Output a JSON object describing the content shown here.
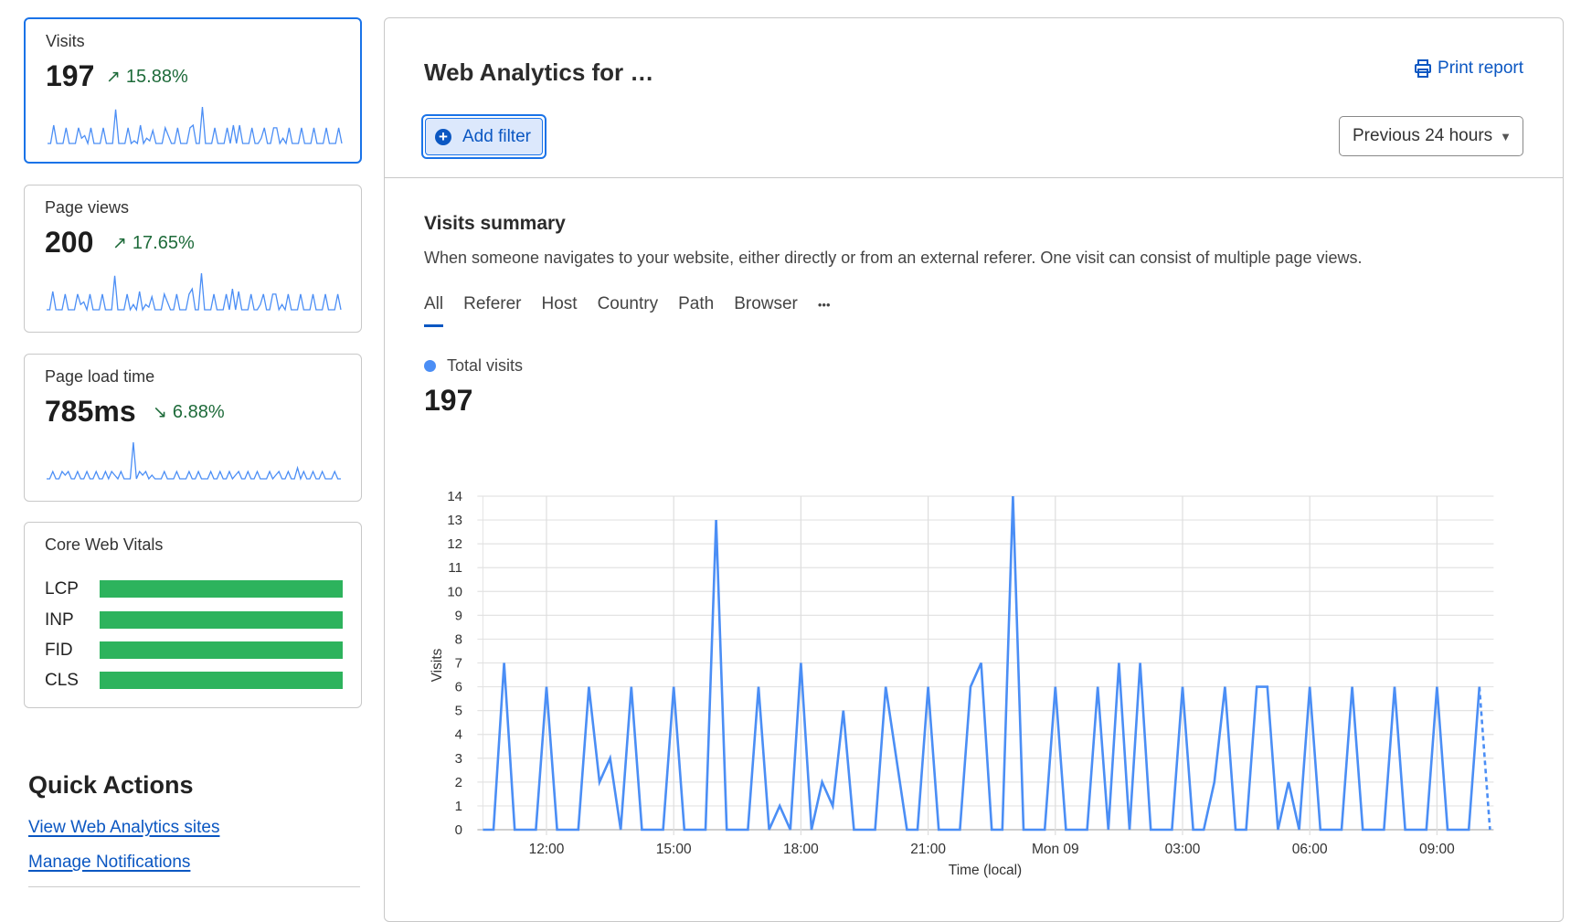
{
  "cards": {
    "visits": {
      "label": "Visits",
      "value": "197",
      "change": "15.88%",
      "trend": "up"
    },
    "page_views": {
      "label": "Page views",
      "value": "200",
      "change": "17.65%",
      "trend": "up",
      "spark": [
        0,
        0,
        7,
        0,
        0,
        0,
        6,
        0,
        0,
        0,
        6,
        2,
        3,
        0,
        6,
        0,
        0,
        0,
        6,
        0,
        0,
        0,
        13,
        0,
        0,
        0,
        6,
        0,
        2,
        0,
        7,
        0,
        2,
        1,
        5,
        0,
        0,
        0,
        6,
        3,
        0,
        0,
        6,
        0,
        0,
        0,
        6,
        8,
        0,
        0,
        14,
        0,
        0,
        0,
        6,
        0,
        0,
        0,
        6,
        0,
        8,
        0,
        7,
        0,
        0,
        0,
        6,
        0,
        0,
        2,
        6,
        0,
        0,
        6,
        6,
        0,
        2,
        0,
        6,
        0,
        0,
        0,
        6,
        0,
        0,
        0,
        6,
        0,
        0,
        0,
        6,
        0,
        0,
        0,
        6,
        0
      ]
    },
    "page_load": {
      "label": "Page load time",
      "value": "785ms",
      "change": "6.88%",
      "trend": "down",
      "spark": [
        0,
        0,
        2,
        0,
        0,
        2,
        1,
        2,
        0,
        0,
        2,
        0,
        0,
        2,
        0,
        0,
        2,
        0,
        0,
        2,
        0,
        2,
        1,
        0,
        2,
        0,
        0,
        0,
        10,
        0,
        2,
        1,
        2,
        0,
        1,
        0,
        0,
        0,
        2,
        0,
        0,
        0,
        2,
        0,
        0,
        0,
        2,
        0,
        0,
        2,
        0,
        0,
        0,
        2,
        0,
        0,
        2,
        0,
        0,
        2,
        0,
        1,
        2,
        0,
        0,
        2,
        0,
        0,
        2,
        0,
        0,
        0,
        2,
        0,
        1,
        2,
        0,
        0,
        2,
        0,
        0,
        3,
        0,
        2,
        0,
        0,
        2,
        0,
        0,
        2,
        0,
        0,
        0,
        2,
        0,
        0
      ]
    },
    "core_web_vitals": {
      "label": "Core Web Vitals",
      "metrics": [
        {
          "name": "LCP",
          "good": 1.0
        },
        {
          "name": "INP",
          "good": 1.0
        },
        {
          "name": "FID",
          "good": 1.0
        },
        {
          "name": "CLS",
          "good": 1.0
        }
      ],
      "good_color": "#2db35d"
    }
  },
  "quick_actions": {
    "title": "Quick Actions",
    "links": [
      "View Web Analytics sites",
      "Manage Notifications"
    ]
  },
  "header": {
    "title": "Web Analytics for …",
    "add_filter": "Add filter",
    "print_report": "Print report",
    "time_range": "Previous 24 hours"
  },
  "summary": {
    "title": "Visits summary",
    "description": "When someone navigates to your website, either directly or from an external referer. One visit can consist of multiple page views.",
    "tabs": [
      "All",
      "Referer",
      "Host",
      "Country",
      "Path",
      "Browser",
      "•••"
    ],
    "selected_tab": "All",
    "legend": "Total visits",
    "total": "197"
  },
  "colors": {
    "accent": "#0b57c2",
    "series": "#4b8ef5",
    "positive": "#1e6b3a"
  },
  "chart_data": {
    "type": "line",
    "xlabel": "Time (local)",
    "ylabel": "Visits",
    "ylim": [
      0,
      14
    ],
    "yticks": [
      0,
      1,
      2,
      3,
      4,
      5,
      6,
      7,
      8,
      9,
      10,
      11,
      12,
      13,
      14
    ],
    "xticks": [
      {
        "at": "12:00",
        "label": "12:00"
      },
      {
        "at": "15:00",
        "label": "15:00"
      },
      {
        "at": "18:00",
        "label": "18:00"
      },
      {
        "at": "21:00",
        "label": "21:00"
      },
      {
        "at": "00:00",
        "label": "Mon 09"
      },
      {
        "at": "03:00",
        "label": "03:00"
      },
      {
        "at": "06:00",
        "label": "06:00"
      },
      {
        "at": "09:00",
        "label": "09:00"
      }
    ],
    "grid": true,
    "x": [
      "10:30",
      "10:45",
      "11:00",
      "11:15",
      "11:30",
      "11:45",
      "12:00",
      "12:15",
      "12:30",
      "12:45",
      "13:00",
      "13:15",
      "13:30",
      "13:45",
      "14:00",
      "14:15",
      "14:30",
      "14:45",
      "15:00",
      "15:15",
      "15:30",
      "15:45",
      "16:00",
      "16:15",
      "16:30",
      "16:45",
      "17:00",
      "17:15",
      "17:30",
      "17:45",
      "18:00",
      "18:15",
      "18:30",
      "18:45",
      "19:00",
      "19:15",
      "19:30",
      "19:45",
      "20:00",
      "20:15",
      "20:30",
      "20:45",
      "21:00",
      "21:15",
      "21:30",
      "21:45",
      "22:00",
      "22:15",
      "22:30",
      "22:45",
      "23:00",
      "23:15",
      "23:30",
      "23:45",
      "00:00",
      "00:15",
      "00:30",
      "00:45",
      "01:00",
      "01:15",
      "01:30",
      "01:45",
      "02:00",
      "02:15",
      "02:30",
      "02:45",
      "03:00",
      "03:15",
      "03:30",
      "03:45",
      "04:00",
      "04:15",
      "04:30",
      "04:45",
      "05:00",
      "05:15",
      "05:30",
      "05:45",
      "06:00",
      "06:15",
      "06:30",
      "06:45",
      "07:00",
      "07:15",
      "07:30",
      "07:45",
      "08:00",
      "08:15",
      "08:30",
      "08:45",
      "09:00",
      "09:15",
      "09:30",
      "09:45",
      "10:00",
      "10:15"
    ],
    "series": [
      {
        "name": "Total visits",
        "values": [
          0,
          0,
          7,
          0,
          0,
          0,
          6,
          0,
          0,
          0,
          6,
          2,
          3,
          0,
          6,
          0,
          0,
          0,
          6,
          0,
          0,
          0,
          13,
          0,
          0,
          0,
          6,
          0,
          1,
          0,
          7,
          0,
          2,
          1,
          5,
          0,
          0,
          0,
          6,
          3,
          0,
          0,
          6,
          0,
          0,
          0,
          6,
          7,
          0,
          0,
          14,
          0,
          0,
          0,
          6,
          0,
          0,
          0,
          6,
          0,
          7,
          0,
          7,
          0,
          0,
          0,
          6,
          0,
          0,
          2,
          6,
          0,
          0,
          6,
          6,
          0,
          2,
          0,
          6,
          0,
          0,
          0,
          6,
          0,
          0,
          0,
          6,
          0,
          0,
          0,
          6,
          0,
          0,
          0,
          6,
          0
        ]
      }
    ],
    "last_segment_partial": true
  }
}
